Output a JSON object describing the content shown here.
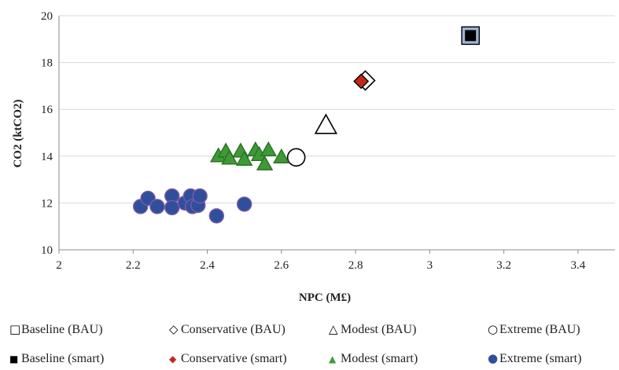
{
  "chart_data": {
    "type": "scatter",
    "title": "",
    "xlabel": "NPC (M£)",
    "ylabel": "CO2 (ktCO2)",
    "xlim": [
      2,
      3.5
    ],
    "ylim": [
      10,
      20
    ],
    "x_ticks": [
      "2",
      "2.2",
      "2.4",
      "2.6",
      "2.8",
      "3",
      "3.2",
      "3.4"
    ],
    "y_ticks": [
      "10",
      "12",
      "14",
      "16",
      "18",
      "20"
    ],
    "grid": "horizontal",
    "legend_placement": "bottom",
    "series": [
      {
        "name": "Baseline (BAU)",
        "marker": "square-open",
        "color": "#000000",
        "points": [
          {
            "x": 3.11,
            "y": 19.15
          }
        ]
      },
      {
        "name": "Conservative (BAU)",
        "marker": "diamond-open",
        "color": "#000000",
        "points": [
          {
            "x": 2.82,
            "y": 17.2
          }
        ]
      },
      {
        "name": "Modest (BAU)",
        "marker": "triangle-open",
        "color": "#000000",
        "points": [
          {
            "x": 2.72,
            "y": 15.3
          }
        ]
      },
      {
        "name": "Extreme (BAU)",
        "marker": "circle-open",
        "color": "#000000",
        "points": [
          {
            "x": 2.64,
            "y": 13.95
          }
        ]
      },
      {
        "name": "Baseline (smart)",
        "marker": "square",
        "color": "#000000",
        "points": [
          {
            "x": 3.11,
            "y": 19.15
          }
        ]
      },
      {
        "name": "Conservative (smart)",
        "marker": "diamond",
        "color": "#c0281c",
        "points": [
          {
            "x": 2.815,
            "y": 17.2
          }
        ]
      },
      {
        "name": "Modest (smart)",
        "marker": "triangle",
        "color": "#3d9b35",
        "points": [
          {
            "x": 2.43,
            "y": 14.0
          },
          {
            "x": 2.45,
            "y": 14.2
          },
          {
            "x": 2.46,
            "y": 13.9
          },
          {
            "x": 2.49,
            "y": 14.2
          },
          {
            "x": 2.5,
            "y": 13.85
          },
          {
            "x": 2.53,
            "y": 14.25
          },
          {
            "x": 2.54,
            "y": 14.05
          },
          {
            "x": 2.555,
            "y": 13.65
          },
          {
            "x": 2.565,
            "y": 14.25
          },
          {
            "x": 2.6,
            "y": 13.95
          }
        ]
      },
      {
        "name": "Extreme (smart)",
        "marker": "circle",
        "color": "#2f4f9b",
        "points": [
          {
            "x": 2.22,
            "y": 11.85
          },
          {
            "x": 2.24,
            "y": 12.2
          },
          {
            "x": 2.265,
            "y": 11.85
          },
          {
            "x": 2.305,
            "y": 12.3
          },
          {
            "x": 2.305,
            "y": 11.8
          },
          {
            "x": 2.34,
            "y": 12.0
          },
          {
            "x": 2.355,
            "y": 12.3
          },
          {
            "x": 2.36,
            "y": 11.85
          },
          {
            "x": 2.375,
            "y": 11.9
          },
          {
            "x": 2.38,
            "y": 12.3
          },
          {
            "x": 2.425,
            "y": 11.45
          },
          {
            "x": 2.5,
            "y": 11.95
          }
        ]
      }
    ]
  },
  "legend": {
    "row1": [
      "Baseline (BAU)",
      "Conservative (BAU)",
      "Modest (BAU)",
      "Extreme (BAU)"
    ],
    "row2": [
      "Baseline (smart)",
      "Conservative (smart)",
      "Modest (smart)",
      "Extreme (smart)"
    ]
  }
}
